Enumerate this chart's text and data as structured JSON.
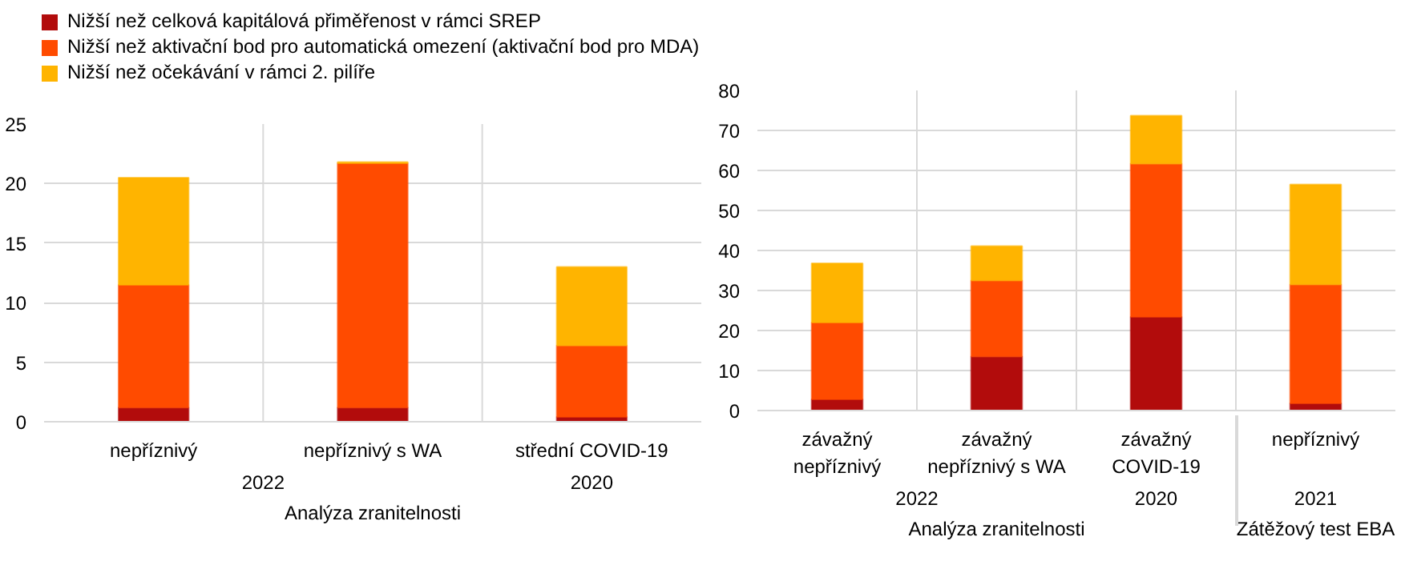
{
  "chart_data": [
    {
      "type": "bar",
      "stacked": true,
      "categories": [
        "nepříznivý",
        "nepříznivý s WA",
        "střední COVID-19"
      ],
      "series": [
        {
          "name": "Nižší než celková kapitálová přiměřenost v rámci SREP",
          "color": "#b20c0c",
          "values": [
            1.2,
            1.2,
            0.4
          ]
        },
        {
          "name": "Nižší než aktivační bod pro automatická omezení (aktivační bod pro MDA)",
          "color": "#ff4b00",
          "values": [
            10.3,
            20.5,
            6.0
          ]
        },
        {
          "name": "Nižší než očekávání v rámci 2. pilíře",
          "color": "#ffb400",
          "values": [
            9.0,
            0.1,
            6.6
          ]
        }
      ],
      "ylim": [
        0,
        25
      ],
      "yticks": [
        0,
        5,
        10,
        15,
        20,
        25
      ],
      "grid": true,
      "legend": "top",
      "annotations": [
        "2022",
        "2020",
        "Analýza zranitelnosti"
      ]
    },
    {
      "type": "bar",
      "stacked": true,
      "categories": [
        "závažný\nnepříznivý",
        "závažný\nnepříznivý s WA",
        "závažný\nCOVID-19",
        "nepříznivý"
      ],
      "series": [
        {
          "color": "#b20c0c",
          "values": [
            2.8,
            13.5,
            23.4,
            1.8
          ]
        },
        {
          "color": "#ff4b00",
          "values": [
            19.2,
            19.0,
            38.3,
            29.7
          ]
        },
        {
          "color": "#ffb400",
          "values": [
            14.8,
            8.6,
            12.0,
            25.0
          ]
        }
      ],
      "ylim": [
        0,
        80
      ],
      "yticks": [
        0,
        10,
        20,
        30,
        40,
        50,
        60,
        70,
        80
      ],
      "grid": true,
      "annotations": [
        "2022",
        "2020",
        "2021",
        "Analýza zranitelnosti",
        "Zátěžový test EBA"
      ]
    }
  ]
}
